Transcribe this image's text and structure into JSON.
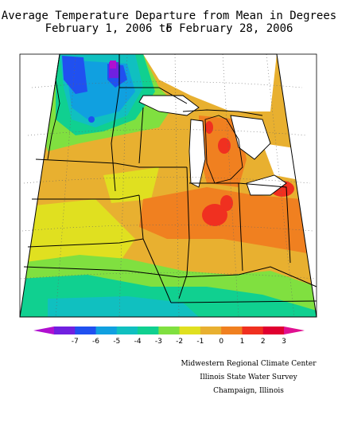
{
  "title": "Average Temperature Departure from Mean in Degrees F",
  "subtitle": "February 1, 2006 to February 28, 2006",
  "legend": {
    "labels": [
      "-7",
      "-6",
      "-5",
      "-4",
      "-3",
      "-2",
      "-1",
      "0",
      "1",
      "2",
      "3"
    ],
    "colors": [
      "#b010d0",
      "#7020e0",
      "#2050f0",
      "#10a0e0",
      "#10c0c0",
      "#10d090",
      "#80e040",
      "#e0e020",
      "#e8b030",
      "#f08020",
      "#f03020",
      "#e00030",
      "#e01090"
    ]
  },
  "credits": {
    "line1": "Midwestern Regional Climate Center",
    "line2": "Illinois State Water Survey",
    "line3": "Champaign, Illinois"
  },
  "map": {
    "region": "Midwest United States",
    "variable": "temperature departure",
    "units": "degrees F",
    "colors": {
      "lake": "#ffffff",
      "border": "#000000",
      "gridline": "#666666"
    }
  }
}
